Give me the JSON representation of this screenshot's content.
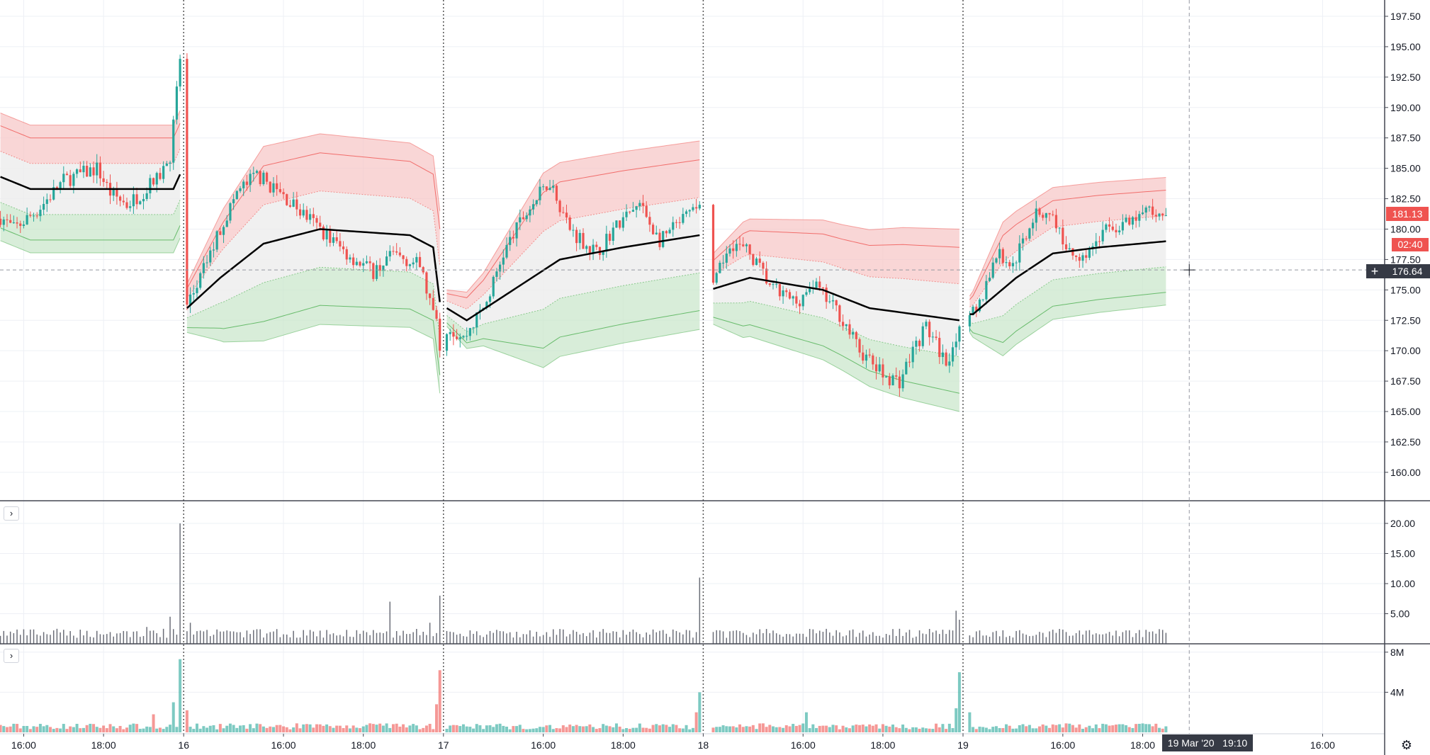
{
  "colors": {
    "up": "#26a69a",
    "down": "#ef5350",
    "vwap": "#000000",
    "upper_fill": "#f7c5c5",
    "lower_fill": "#c8e6c9",
    "mid_fill": "#ececec",
    "indicator": "#6b6e78",
    "grid": "#eef0f5",
    "separator": "#555555",
    "crosshair": "#9598a1",
    "label_dark": "#363a45"
  },
  "chart_data": [
    {
      "type": "candlestick",
      "pane": "price",
      "sessions": [
        "2020-03-13",
        "2020-03-16",
        "2020-03-17",
        "2020-03-18",
        "2020-03-19",
        "2020-03-20"
      ],
      "session_hours": [
        "13:30",
        "20:00"
      ],
      "ylim": [
        158.5,
        198.5
      ],
      "y_ticks": [
        "197.50",
        "195.00",
        "192.50",
        "190.00",
        "187.50",
        "185.00",
        "182.50",
        "180.00",
        "177.50",
        "175.00",
        "172.50",
        "170.00",
        "167.50",
        "165.00",
        "162.50",
        "160.00"
      ],
      "close_path": {
        "2020-03-13": [
          [
            "15:25",
            181
          ],
          [
            "15:45",
            180
          ],
          [
            "16:20",
            181.5
          ],
          [
            "17:00",
            184
          ],
          [
            "17:50",
            185
          ],
          [
            "18:10",
            183
          ],
          [
            "18:35",
            182
          ],
          [
            "19:20",
            184
          ],
          [
            "19:40",
            186
          ],
          [
            "19:55",
            194
          ]
        ],
        "2020-03-16": [
          [
            "13:35",
            173.5
          ],
          [
            "13:55",
            176
          ],
          [
            "14:25",
            180
          ],
          [
            "14:50",
            183
          ],
          [
            "15:20",
            184.5
          ],
          [
            "16:15",
            182
          ],
          [
            "16:55",
            180
          ],
          [
            "17:35",
            178
          ],
          [
            "18:15",
            176.5
          ],
          [
            "18:45",
            178
          ],
          [
            "19:25",
            177
          ],
          [
            "19:50",
            172
          ],
          [
            "19:55",
            170
          ]
        ],
        "2020-03-17": [
          [
            "13:35",
            172
          ],
          [
            "14:00",
            171
          ],
          [
            "14:35",
            174
          ],
          [
            "15:00",
            178
          ],
          [
            "15:30",
            181
          ],
          [
            "16:10",
            184
          ],
          [
            "16:40",
            180
          ],
          [
            "17:20",
            178
          ],
          [
            "17:45",
            180
          ],
          [
            "18:25",
            182
          ],
          [
            "18:55",
            179
          ],
          [
            "19:35",
            181
          ],
          [
            "19:55",
            182
          ]
        ],
        "2020-03-18": [
          [
            "13:45",
            175
          ],
          [
            "14:10",
            179
          ],
          [
            "14:40",
            178
          ],
          [
            "15:15",
            175
          ],
          [
            "15:50",
            174
          ],
          [
            "16:15",
            175.5
          ],
          [
            "16:55",
            173
          ],
          [
            "17:25",
            170
          ],
          [
            "18:00",
            168
          ],
          [
            "18:25",
            167.5
          ],
          [
            "18:45",
            170
          ],
          [
            "19:05",
            172
          ],
          [
            "19:35",
            169
          ],
          [
            "19:55",
            172
          ]
        ],
        "2020-03-19": [
          [
            "13:40",
            173
          ],
          [
            "13:50",
            173
          ],
          [
            "14:20",
            178
          ],
          [
            "14:45",
            177
          ],
          [
            "15:15",
            181
          ],
          [
            "15:40",
            181.5
          ],
          [
            "16:10",
            178
          ],
          [
            "16:35",
            178
          ],
          [
            "17:05",
            180
          ],
          [
            "17:45",
            180.5
          ],
          [
            "18:05",
            181.5
          ],
          [
            "18:35",
            181.13
          ]
        ]
      },
      "vwap": {
        "2020-03-13": [
          [
            "15:25",
            184.3
          ],
          [
            "16:10",
            183.3
          ],
          [
            "19:45",
            183.3
          ],
          [
            "19:55",
            184.5
          ]
        ],
        "2020-03-16": [
          [
            "13:35",
            173.5
          ],
          [
            "14:25",
            176
          ],
          [
            "15:30",
            178.8
          ],
          [
            "16:55",
            180
          ],
          [
            "19:10",
            179.5
          ],
          [
            "19:45",
            178.5
          ],
          [
            "19:55",
            174
          ]
        ],
        "2020-03-17": [
          [
            "13:35",
            173.5
          ],
          [
            "14:05",
            172.5
          ],
          [
            "15:15",
            175
          ],
          [
            "16:25",
            177.5
          ],
          [
            "18:00",
            178.5
          ],
          [
            "19:55",
            179.5
          ]
        ],
        "2020-03-18": [
          [
            "13:40",
            175
          ],
          [
            "14:40",
            176
          ],
          [
            "16:30",
            175
          ],
          [
            "17:40",
            173.5
          ],
          [
            "19:55",
            172.5
          ]
        ],
        "2020-03-19": [
          [
            "13:45",
            173
          ],
          [
            "14:50",
            176
          ],
          [
            "15:45",
            178
          ],
          [
            "16:55",
            178.5
          ],
          [
            "18:35",
            179
          ]
        ]
      },
      "band_stdev": {
        "2020-03-13": [
          [
            "15:25",
            2.1
          ],
          [
            "19:55",
            2.1
          ]
        ],
        "2020-03-16": [
          [
            "13:35",
            0.8
          ],
          [
            "14:30",
            2.2
          ],
          [
            "15:30",
            3.2
          ],
          [
            "19:55",
            3.0
          ]
        ],
        "2020-03-17": [
          [
            "13:35",
            0.6
          ],
          [
            "14:30",
            1.2
          ],
          [
            "16:00",
            3.2
          ],
          [
            "19:55",
            3.1
          ]
        ],
        "2020-03-18": [
          [
            "13:35",
            1.0
          ],
          [
            "14:30",
            1.9
          ],
          [
            "17:00",
            2.4
          ],
          [
            "18:30",
            2.8
          ],
          [
            "19:55",
            3.0
          ]
        ],
        "2020-03-19": [
          [
            "13:40",
            0.6
          ],
          [
            "14:30",
            2.2
          ],
          [
            "18:35",
            2.1
          ]
        ]
      },
      "band_multipliers": [
        1,
        2,
        2.5
      ],
      "last_price": "181.13",
      "countdown": "02:40"
    },
    {
      "type": "bar",
      "pane": "indicator",
      "ylim": [
        0,
        22.5
      ],
      "y_ticks": [
        "20.00",
        "15.00",
        "10.00",
        "5.00"
      ],
      "baseline_range": [
        1,
        2.5
      ],
      "spikes": [
        [
          "2020-03-13",
          "19:05",
          2.8
        ],
        [
          "2020-03-13",
          "19:40",
          4.5
        ],
        [
          "2020-03-13",
          "19:55",
          20
        ],
        [
          "2020-03-16",
          "13:40",
          3.5
        ],
        [
          "2020-03-16",
          "18:40",
          7
        ],
        [
          "2020-03-16",
          "19:40",
          3.5
        ],
        [
          "2020-03-16",
          "19:55",
          8
        ],
        [
          "2020-03-17",
          "19:55",
          11
        ],
        [
          "2020-03-18",
          "19:50",
          5.5
        ],
        [
          "2020-03-18",
          "19:55",
          4
        ]
      ]
    },
    {
      "type": "bar",
      "pane": "volume",
      "ylim": [
        0,
        8.8
      ],
      "units": "M",
      "y_ticks": [
        "8M",
        "4M"
      ],
      "baseline_range": [
        0.3,
        0.9
      ],
      "spikes": [
        [
          "2020-03-13",
          "19:15",
          1.8
        ],
        [
          "2020-03-13",
          "19:45",
          3.0
        ],
        [
          "2020-03-13",
          "19:55",
          7.3
        ],
        [
          "2020-03-16",
          "13:35",
          2.2
        ],
        [
          "2020-03-16",
          "19:50",
          2.8
        ],
        [
          "2020-03-16",
          "19:55",
          6.2
        ],
        [
          "2020-03-17",
          "19:50",
          2.0
        ],
        [
          "2020-03-17",
          "19:55",
          4.0
        ],
        [
          "2020-03-18",
          "16:05",
          2.0
        ],
        [
          "2020-03-18",
          "19:50",
          2.4
        ],
        [
          "2020-03-18",
          "19:55",
          6.0
        ],
        [
          "2020-03-19",
          "13:40",
          2.0
        ]
      ]
    }
  ],
  "time_axis": [
    {
      "text": "16:00",
      "date": "2020-03-13",
      "time": "16:00"
    },
    {
      "text": "18:00",
      "date": "2020-03-13",
      "time": "18:00"
    },
    {
      "text": "16",
      "date": "2020-03-16",
      "time": "13:30"
    },
    {
      "text": "16:00",
      "date": "2020-03-16",
      "time": "16:00"
    },
    {
      "text": "18:00",
      "date": "2020-03-16",
      "time": "18:00"
    },
    {
      "text": "17",
      "date": "2020-03-17",
      "time": "13:30"
    },
    {
      "text": "16:00",
      "date": "2020-03-17",
      "time": "16:00"
    },
    {
      "text": "18:00",
      "date": "2020-03-17",
      "time": "18:00"
    },
    {
      "text": "18",
      "date": "2020-03-18",
      "time": "13:30"
    },
    {
      "text": "16:00",
      "date": "2020-03-18",
      "time": "16:00"
    },
    {
      "text": "18:00",
      "date": "2020-03-18",
      "time": "18:00"
    },
    {
      "text": "19",
      "date": "2020-03-19",
      "time": "13:30"
    },
    {
      "text": "16:00",
      "date": "2020-03-19",
      "time": "16:00"
    },
    {
      "text": "18:00",
      "date": "2020-03-19",
      "time": "18:00"
    },
    {
      "text": "16:00",
      "date": "2020-03-20",
      "time": "16:00"
    }
  ],
  "crosshair": {
    "price": "176.64",
    "date": "2020-03-19",
    "time": "19:10",
    "time_label": "19 Mar '20   19:10"
  },
  "icons": {
    "collapse": "chevron-right-icon",
    "settings": "gear-icon",
    "crosshair": "plus-icon"
  },
  "ui": {
    "collapse_glyph": "›",
    "plus_glyph": "+",
    "gear_glyph": "⚙"
  }
}
